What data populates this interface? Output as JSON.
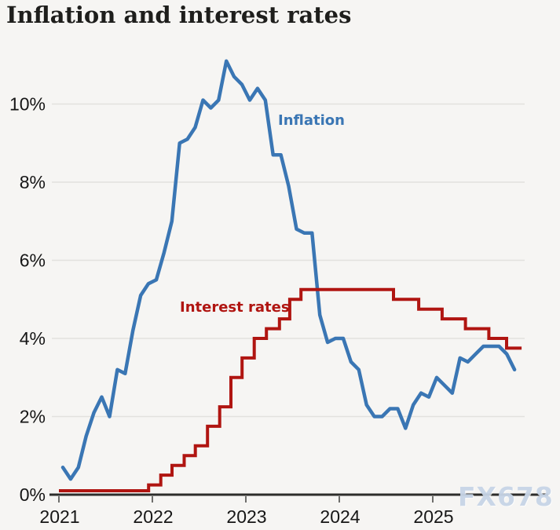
{
  "page": {
    "title": "Inflation and interest rates",
    "watermark": "FX678"
  },
  "chart_data": {
    "type": "line",
    "title": "Inflation and interest rates",
    "grid": true,
    "legend_position": "inline-labels",
    "x_axis": {
      "range": [
        2021,
        2026
      ],
      "ticks": [
        2021,
        2022,
        2023,
        2024,
        2025
      ],
      "tick_labels": [
        "2021",
        "2022",
        "2023",
        "2024",
        "2025"
      ]
    },
    "y_axis": {
      "unit": "%",
      "range": [
        0,
        11.5
      ],
      "tick_values": [
        0,
        2,
        4,
        6,
        8,
        10
      ],
      "ticks": [
        "0%",
        "2%",
        "4%",
        "6%",
        "8%",
        "10%"
      ]
    },
    "series": [
      {
        "name": "Inflation",
        "color": "#3a76b4",
        "kind": "monthly",
        "start": "2021-01",
        "end": "2025-11",
        "values": [
          0.7,
          0.4,
          0.7,
          1.5,
          2.1,
          2.5,
          2.0,
          3.2,
          3.1,
          4.2,
          5.1,
          5.4,
          5.5,
          6.2,
          7.0,
          9.0,
          9.1,
          9.4,
          10.1,
          9.9,
          10.1,
          11.1,
          10.7,
          10.5,
          10.1,
          10.4,
          10.1,
          8.7,
          8.7,
          7.9,
          6.8,
          6.7,
          6.7,
          4.6,
          3.9,
          4.0,
          4.0,
          3.4,
          3.2,
          2.3,
          2.0,
          2.0,
          2.2,
          2.2,
          1.7,
          2.3,
          2.6,
          2.5,
          3.0,
          2.8,
          2.6,
          3.5,
          3.4,
          3.6,
          3.8,
          3.8,
          3.8,
          3.6,
          3.2
        ]
      },
      {
        "name": "Interest rates",
        "color": "#b01511",
        "kind": "step",
        "changes": [
          [
            2021.0,
            0.1
          ],
          [
            2021.96,
            0.25
          ],
          [
            2022.09,
            0.5
          ],
          [
            2022.21,
            0.75
          ],
          [
            2022.34,
            1.0
          ],
          [
            2022.46,
            1.25
          ],
          [
            2022.59,
            1.75
          ],
          [
            2022.72,
            2.25
          ],
          [
            2022.84,
            3.0
          ],
          [
            2022.96,
            3.5
          ],
          [
            2023.09,
            4.0
          ],
          [
            2023.22,
            4.25
          ],
          [
            2023.36,
            4.5
          ],
          [
            2023.47,
            5.0
          ],
          [
            2023.59,
            5.25
          ],
          [
            2024.58,
            5.0
          ],
          [
            2024.85,
            4.75
          ],
          [
            2025.1,
            4.5
          ],
          [
            2025.35,
            4.25
          ],
          [
            2025.6,
            4.0
          ],
          [
            2025.79,
            3.75
          ]
        ],
        "end": 2025.95
      }
    ]
  }
}
